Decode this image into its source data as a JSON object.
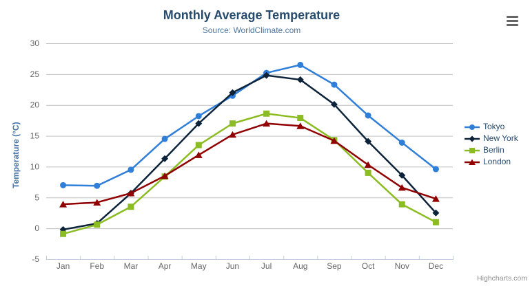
{
  "header": {
    "title": "Monthly Average Temperature",
    "subtitle": "Source: WorldClimate.com"
  },
  "chart_data": {
    "type": "line",
    "title": "Monthly Average Temperature",
    "subtitle": "Source: WorldClimate.com",
    "xlabel": "",
    "ylabel": "Temperature (°C)",
    "ylim": [
      -5,
      30
    ],
    "ytick_interval": 5,
    "grid": true,
    "legend_position": "right",
    "categories": [
      "Jan",
      "Feb",
      "Mar",
      "Apr",
      "May",
      "Jun",
      "Jul",
      "Aug",
      "Sep",
      "Oct",
      "Nov",
      "Dec"
    ],
    "series": [
      {
        "name": "Tokyo",
        "color": "#2f7ed8",
        "marker": "circle",
        "values": [
          7.0,
          6.9,
          9.5,
          14.5,
          18.2,
          21.5,
          25.2,
          26.5,
          23.3,
          18.3,
          13.9,
          9.6
        ]
      },
      {
        "name": "New York",
        "color": "#0d233a",
        "marker": "diamond",
        "values": [
          -0.2,
          0.8,
          5.7,
          11.3,
          17.0,
          22.0,
          24.8,
          24.1,
          20.1,
          14.1,
          8.6,
          2.5
        ]
      },
      {
        "name": "Berlin",
        "color": "#8bbc21",
        "marker": "square",
        "values": [
          -0.9,
          0.6,
          3.5,
          8.4,
          13.5,
          17.0,
          18.6,
          17.9,
          14.3,
          9.0,
          3.9,
          1.0
        ]
      },
      {
        "name": "London",
        "color": "#910000",
        "marker": "triangle",
        "values": [
          3.9,
          4.2,
          5.7,
          8.5,
          11.9,
          15.2,
          17.0,
          16.6,
          14.2,
          10.3,
          6.6,
          4.8
        ]
      }
    ],
    "axis_colors": {
      "grid_line": "#c0c0c0",
      "axis_line": "#c0d0e0",
      "label": "#666666"
    }
  },
  "credits": {
    "label": "Highcharts.com"
  },
  "export_menu": {
    "icon": "hamburger-menu-icon"
  }
}
